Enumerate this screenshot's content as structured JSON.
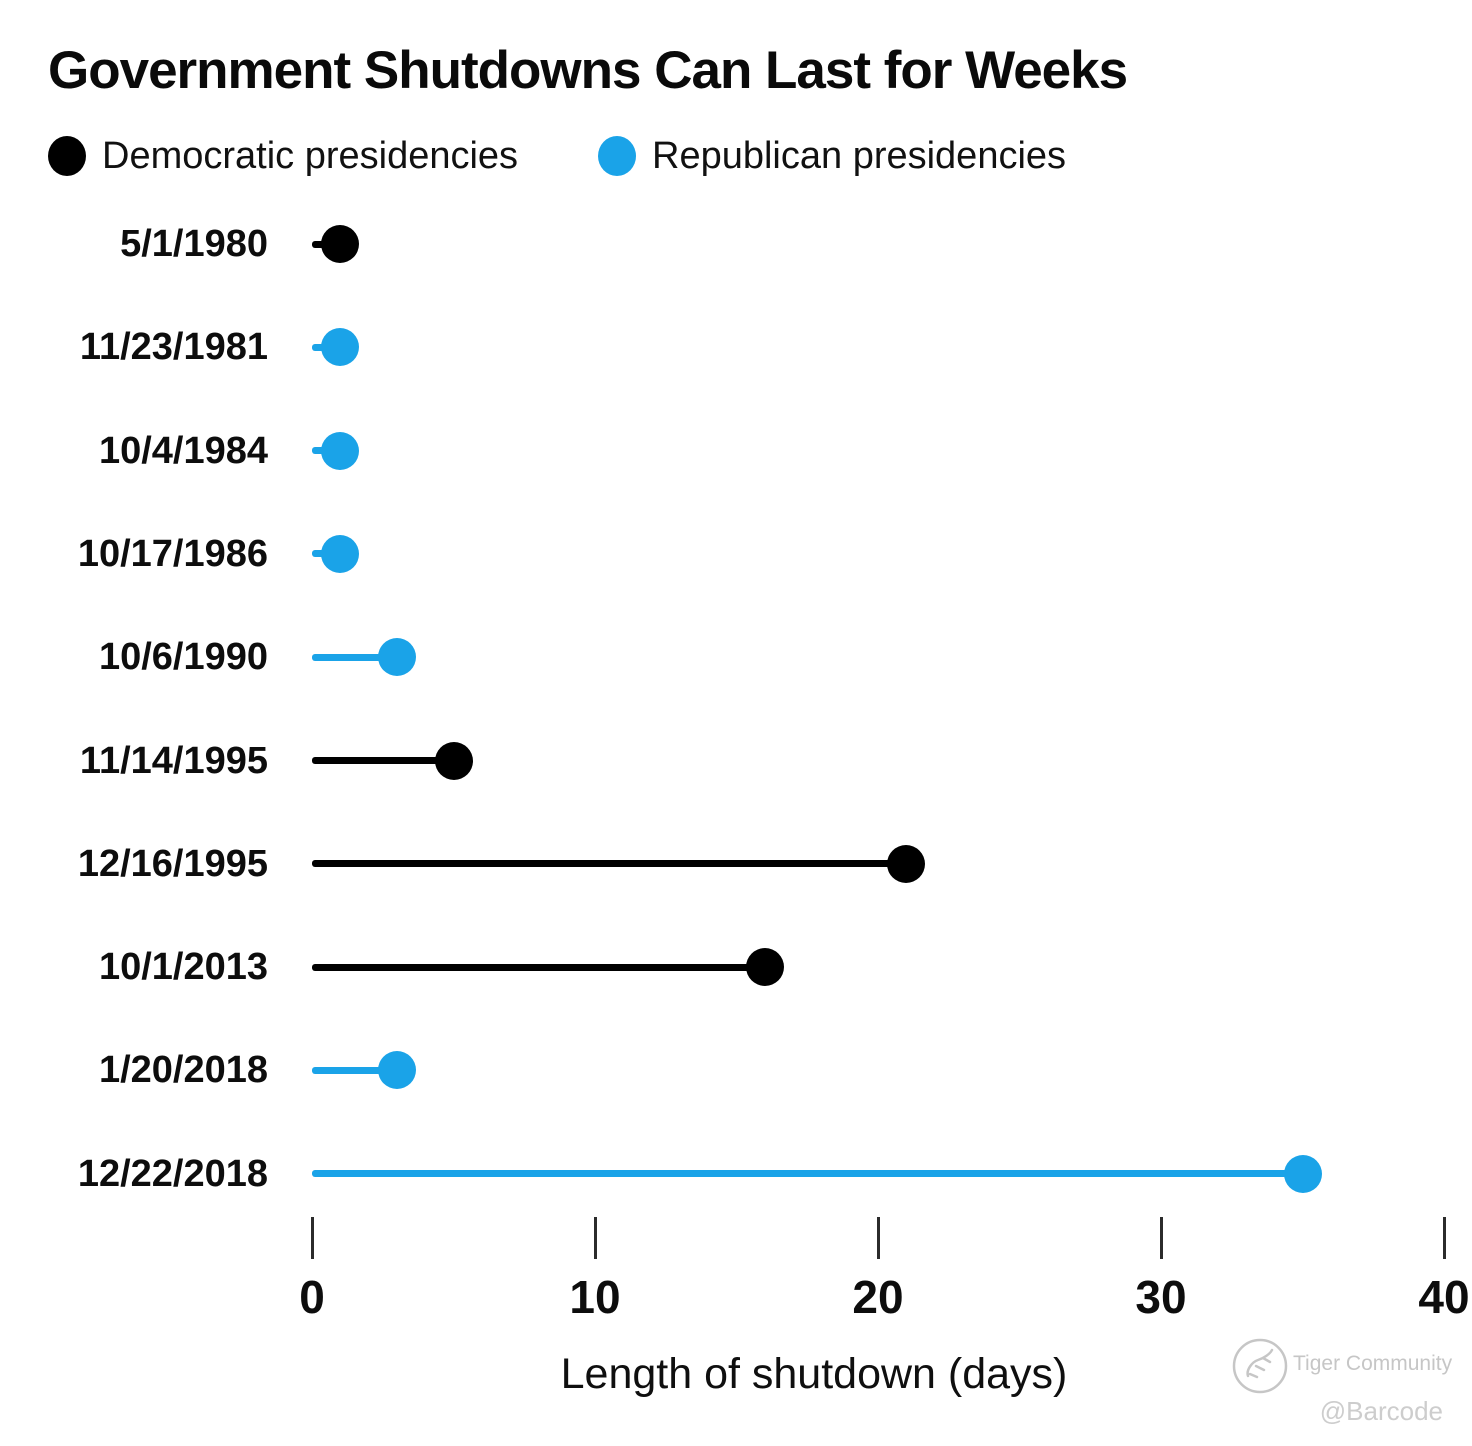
{
  "title": "Government Shutdowns Can Last for Weeks",
  "legend": [
    {
      "label": "Democratic presidencies",
      "party": "democratic"
    },
    {
      "label": "Republican presidencies",
      "party": "republican"
    }
  ],
  "colors": {
    "democratic": "#000000",
    "republican": "#1aa3e8",
    "text": "#0d0d0d",
    "watermark": "#c6c6c6"
  },
  "chart_data": {
    "type": "lollipop",
    "orientation": "horizontal",
    "title": "Government Shutdowns Can Last for Weeks",
    "xlabel": "Length of shutdown (days)",
    "xlim": [
      0,
      40
    ],
    "x_ticks": [
      0,
      10,
      20,
      30,
      40
    ],
    "grid": false,
    "legend_position": "top",
    "rows": [
      {
        "date": "5/1/1980",
        "party": "democratic",
        "days": 1
      },
      {
        "date": "11/23/1981",
        "party": "republican",
        "days": 1
      },
      {
        "date": "10/4/1984",
        "party": "republican",
        "days": 1
      },
      {
        "date": "10/17/1986",
        "party": "republican",
        "days": 1
      },
      {
        "date": "10/6/1990",
        "party": "republican",
        "days": 3
      },
      {
        "date": "11/14/1995",
        "party": "democratic",
        "days": 5
      },
      {
        "date": "12/16/1995",
        "party": "democratic",
        "days": 21
      },
      {
        "date": "10/1/2013",
        "party": "democratic",
        "days": 16
      },
      {
        "date": "1/20/2018",
        "party": "republican",
        "days": 3
      },
      {
        "date": "12/22/2018",
        "party": "republican",
        "days": 35
      }
    ]
  },
  "axis": {
    "label": "Length of shutdown (days)"
  },
  "watermark": {
    "community": "Tiger Community",
    "handle": "@Barcode"
  }
}
